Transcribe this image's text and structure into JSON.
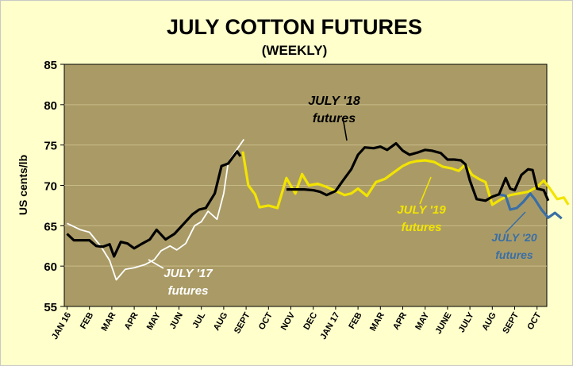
{
  "chart_data": {
    "type": "line",
    "title": "JULY COTTON FUTURES",
    "subtitle": "(WEEKLY)",
    "ylabel": "US cents/lb",
    "ylim": [
      55,
      85
    ],
    "yticks": [
      55,
      60,
      65,
      70,
      75,
      80,
      85
    ],
    "categories": [
      "JAN 16",
      "FEB",
      "MAR",
      "APR",
      "MAY",
      "JUN",
      "JUL",
      "AUG",
      "SEPT",
      "OCT",
      "NOV",
      "DEC",
      "JAN 17",
      "FEB",
      "MAR",
      "APR",
      "MAY",
      "JUNE",
      "JULY",
      "AUG",
      "SEPT",
      "OCT"
    ],
    "grid": true,
    "series": [
      {
        "name": "JULY '17 futures",
        "color": "#ffffff",
        "label_lines": [
          "JULY '17",
          "futures"
        ],
        "points": [
          [
            0,
            65.3
          ],
          [
            0.6,
            64.5
          ],
          [
            1,
            64.2
          ],
          [
            1.5,
            62.5
          ],
          [
            1.9,
            60.7
          ],
          [
            2.2,
            58.3
          ],
          [
            2.6,
            59.6
          ],
          [
            3,
            59.8
          ],
          [
            3.5,
            60.2
          ],
          [
            3.9,
            60.8
          ],
          [
            4.2,
            61.9
          ],
          [
            4.6,
            62.5
          ],
          [
            4.9,
            62.0
          ],
          [
            5.3,
            62.8
          ],
          [
            5.7,
            65.0
          ],
          [
            6.0,
            65.5
          ],
          [
            6.3,
            66.8
          ],
          [
            6.7,
            65.8
          ],
          [
            7.0,
            69.0
          ],
          [
            7.2,
            72.8
          ],
          [
            7.6,
            74.5
          ],
          [
            7.9,
            75.7
          ]
        ]
      },
      {
        "name": "JULY '18 futures",
        "color": "#000000",
        "label_lines": [
          "JULY '18",
          "futures"
        ],
        "points": [
          [
            0,
            64.0
          ],
          [
            0.3,
            63.2
          ],
          [
            0.7,
            63.2
          ],
          [
            1.0,
            63.2
          ],
          [
            1.3,
            62.5
          ],
          [
            1.6,
            62.4
          ],
          [
            1.9,
            62.7
          ],
          [
            2.1,
            61.2
          ],
          [
            2.4,
            63.0
          ],
          [
            2.7,
            62.8
          ],
          [
            3.0,
            62.2
          ],
          [
            3.3,
            62.7
          ],
          [
            3.7,
            63.3
          ],
          [
            4.0,
            64.5
          ],
          [
            4.4,
            63.3
          ],
          [
            4.8,
            64.0
          ],
          [
            5.2,
            65.2
          ],
          [
            5.6,
            66.4
          ],
          [
            5.9,
            67.0
          ],
          [
            6.2,
            67.2
          ],
          [
            6.6,
            69.0
          ],
          [
            6.9,
            72.4
          ],
          [
            7.2,
            72.7
          ],
          [
            7.6,
            74.2
          ],
          [
            7.75,
            73.6
          ]
        ]
      },
      {
        "name": "JULY '18 futures (cont.)",
        "color": "#000000",
        "points": [
          [
            9.8,
            69.5
          ],
          [
            10.2,
            69.5
          ],
          [
            10.6,
            69.5
          ],
          [
            11.0,
            69.4
          ],
          [
            11.3,
            69.2
          ],
          [
            11.6,
            68.8
          ],
          [
            12.0,
            69.3
          ],
          [
            12.3,
            70.5
          ],
          [
            12.7,
            72.0
          ],
          [
            13.0,
            73.8
          ],
          [
            13.3,
            74.7
          ],
          [
            13.7,
            74.6
          ],
          [
            14.0,
            74.8
          ],
          [
            14.3,
            74.4
          ],
          [
            14.7,
            75.2
          ],
          [
            15.0,
            74.3
          ],
          [
            15.3,
            73.8
          ],
          [
            15.7,
            74.1
          ],
          [
            16.0,
            74.4
          ],
          [
            16.3,
            74.3
          ],
          [
            16.7,
            74.0
          ],
          [
            17.0,
            73.2
          ],
          [
            17.3,
            73.2
          ],
          [
            17.6,
            73.1
          ],
          [
            17.8,
            72.6
          ],
          [
            18.0,
            70.6
          ],
          [
            18.3,
            68.3
          ],
          [
            18.7,
            68.1
          ],
          [
            19.0,
            68.6
          ],
          [
            19.3,
            68.9
          ],
          [
            19.6,
            70.9
          ],
          [
            19.8,
            69.6
          ],
          [
            20.0,
            69.4
          ],
          [
            20.3,
            71.3
          ],
          [
            20.6,
            72.0
          ],
          [
            20.8,
            71.9
          ],
          [
            21.0,
            69.6
          ],
          [
            21.3,
            69.4
          ],
          [
            21.5,
            68.1
          ]
        ]
      },
      {
        "name": "JULY '19 futures",
        "color": "#f2e400",
        "label_lines": [
          "JULY '19",
          "futures"
        ],
        "points": [
          [
            7.85,
            74.2
          ],
          [
            8.1,
            70.0
          ],
          [
            8.4,
            68.9
          ],
          [
            8.6,
            67.3
          ],
          [
            9.0,
            67.5
          ],
          [
            9.4,
            67.2
          ],
          [
            9.8,
            70.9
          ],
          [
            10.2,
            69.0
          ],
          [
            10.5,
            71.4
          ],
          [
            10.8,
            70.0
          ],
          [
            11.2,
            70.2
          ],
          [
            11.6,
            69.8
          ],
          [
            12.0,
            69.3
          ],
          [
            12.4,
            68.8
          ],
          [
            12.7,
            69.0
          ],
          [
            13.0,
            69.6
          ],
          [
            13.4,
            68.7
          ],
          [
            13.8,
            70.4
          ],
          [
            14.2,
            70.8
          ],
          [
            14.6,
            71.6
          ],
          [
            15.0,
            72.4
          ],
          [
            15.3,
            72.8
          ],
          [
            15.6,
            73.0
          ],
          [
            16.0,
            73.1
          ],
          [
            16.4,
            72.9
          ],
          [
            16.8,
            72.3
          ],
          [
            17.2,
            72.1
          ],
          [
            17.5,
            71.8
          ],
          [
            17.8,
            72.6
          ],
          [
            18.1,
            71.3
          ],
          [
            18.4,
            70.8
          ],
          [
            18.7,
            70.4
          ],
          [
            19.0,
            67.6
          ],
          [
            19.4,
            68.3
          ],
          [
            19.8,
            68.8
          ],
          [
            20.2,
            69.0
          ],
          [
            20.6,
            69.2
          ],
          [
            21.0,
            69.8
          ],
          [
            21.3,
            70.6
          ],
          [
            21.6,
            69.5
          ],
          [
            21.9,
            68.3
          ],
          [
            22.2,
            68.5
          ],
          [
            22.4,
            67.6
          ]
        ]
      },
      {
        "name": "JULY '20 futures",
        "color": "#3a6ea5",
        "label_lines": [
          "JULY '20",
          "futures"
        ],
        "points": [
          [
            19.3,
            68.9
          ],
          [
            19.6,
            68.7
          ],
          [
            19.8,
            67.0
          ],
          [
            20.1,
            67.2
          ],
          [
            20.4,
            68.0
          ],
          [
            20.7,
            69.0
          ],
          [
            20.9,
            68.3
          ],
          [
            21.2,
            67.0
          ],
          [
            21.5,
            66.0
          ],
          [
            21.8,
            66.6
          ],
          [
            22.1,
            65.9
          ]
        ]
      }
    ]
  }
}
